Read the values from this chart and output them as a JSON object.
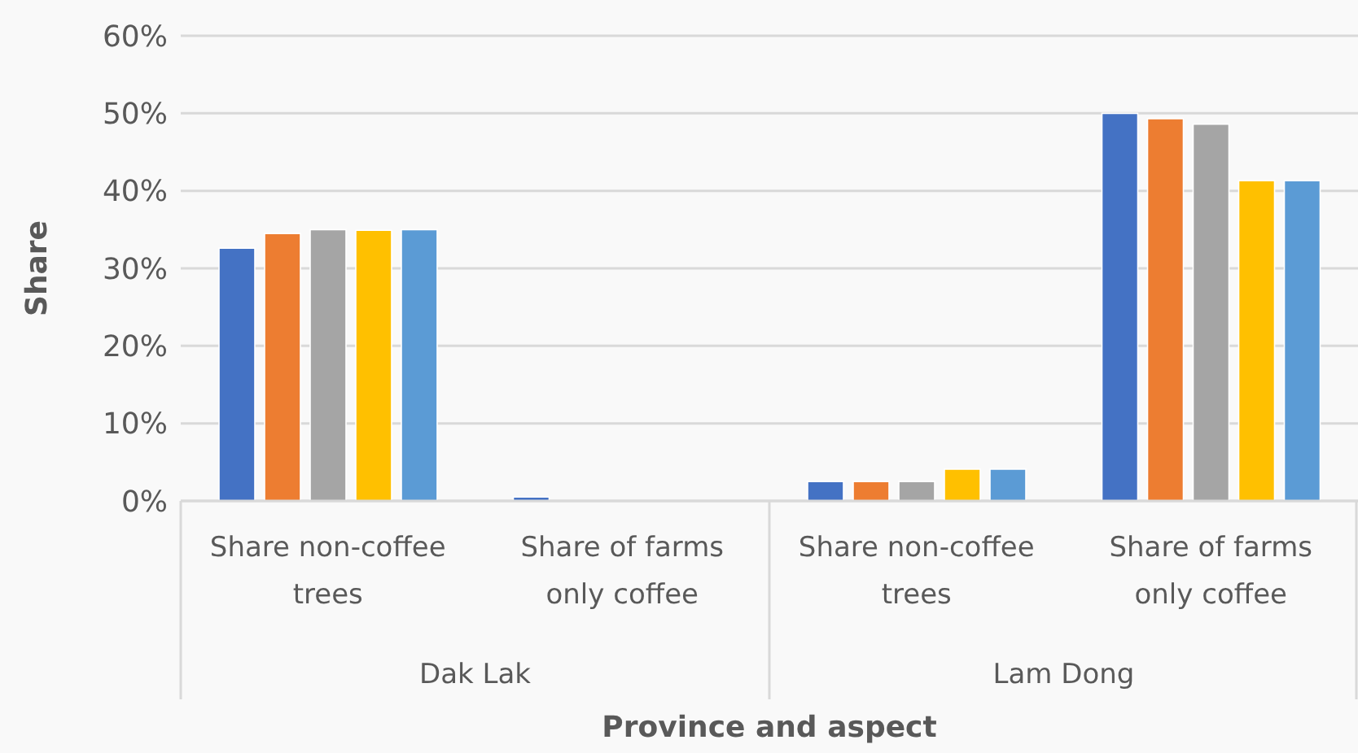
{
  "chart_data": {
    "type": "bar",
    "xlabel": "Province and aspect",
    "ylabel": "Share",
    "categories": [
      "Share non-coffee trees",
      "Share of farms only coffee",
      "Share non-coffee trees",
      "Share of farms only coffee"
    ],
    "annotations": [
      "Dak Lak",
      "Lam Dong"
    ],
    "series": [
      {
        "color": "#4472c4",
        "values": [
          32.6,
          0.5,
          2.5,
          50.0
        ]
      },
      {
        "color": "#ed7d31",
        "values": [
          34.5,
          0,
          2.5,
          49.3
        ]
      },
      {
        "color": "#a5a5a5",
        "values": [
          35.0,
          0,
          2.5,
          48.6
        ]
      },
      {
        "color": "#ffc000",
        "values": [
          34.9,
          0,
          4.1,
          41.3
        ]
      },
      {
        "color": "#5b9bd5",
        "values": [
          35.0,
          0,
          4.1,
          41.3
        ]
      }
    ],
    "ylim": [
      0,
      60
    ],
    "yticks": [
      {
        "value": 0,
        "label": "0%"
      },
      {
        "value": 10,
        "label": "10%"
      },
      {
        "value": 20,
        "label": "20%"
      },
      {
        "value": 30,
        "label": "30%"
      },
      {
        "value": 40,
        "label": "40%"
      },
      {
        "value": 50,
        "label": "50%"
      },
      {
        "value": 60,
        "label": "60%"
      }
    ],
    "grid": "y"
  }
}
